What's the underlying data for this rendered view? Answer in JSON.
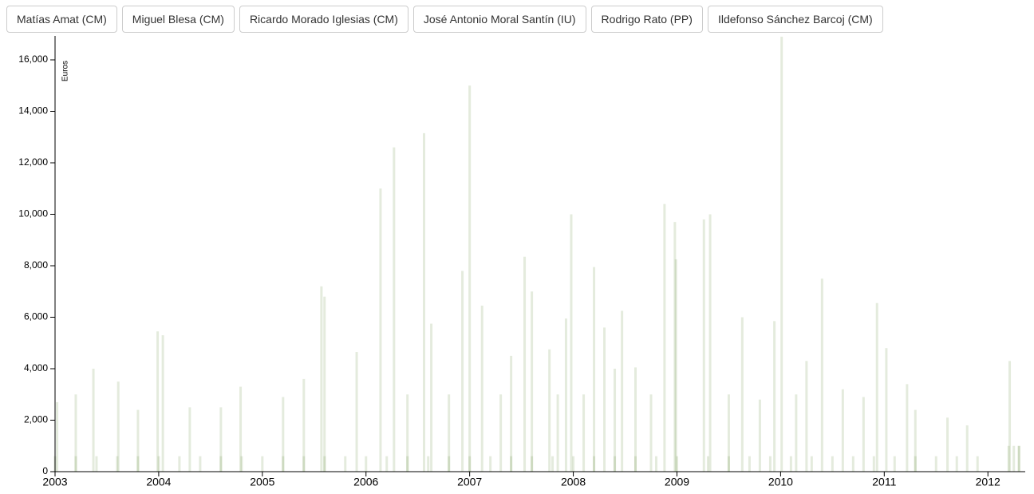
{
  "buttons": [
    "Matías Amat (CM)",
    "Miguel Blesa (CM)",
    "Ricardo Morado Iglesias (CM)",
    "José Antonio Moral Santín (IU)",
    "Rodrigo Rato (PP)",
    "Ildefonso Sánchez Barcoj (CM)"
  ],
  "chart_data": {
    "type": "bar",
    "ylabel": "Euros",
    "color": "#4a7a1a",
    "xlim": [
      2003,
      2012.36
    ],
    "xticks": [
      2003,
      2004,
      2005,
      2006,
      2007,
      2008,
      2009,
      2010,
      2011,
      2012
    ],
    "ylim": [
      0,
      16930
    ],
    "yticks": [
      0,
      {
        "value": 2000,
        "label": "2,000"
      },
      {
        "value": 4000,
        "label": "4,000"
      },
      {
        "value": 6000,
        "label": "6,000"
      },
      {
        "value": 8000,
        "label": "8,000"
      },
      {
        "value": 10000,
        "label": "10,000"
      },
      {
        "value": 12000,
        "label": "12,000"
      },
      {
        "value": 14000,
        "label": "14,000"
      },
      {
        "value": 16000,
        "label": "16,000"
      }
    ],
    "x": [
      2003.02,
      2003.37,
      2003.61,
      2003.99,
      2004.04,
      2004.79,
      2005.57,
      2005.6,
      2005.91,
      2006.14,
      2006.27,
      2006.56,
      2006.63,
      2006.93,
      2007.0,
      2007.12,
      2007.53,
      2007.6,
      2007.77,
      2007.93,
      2007.98,
      2008.2,
      2008.3,
      2008.47,
      2008.88,
      2008.98,
      2008.99,
      2009.26,
      2009.32,
      2009.63,
      2009.94,
      2010.01,
      2010.25,
      2010.4,
      2010.93,
      2011.02,
      2011.22,
      2012.21,
      2011.61,
      2003.2,
      2003.8,
      2004.3,
      2004.6,
      2005.2,
      2005.4,
      2006.4,
      2006.8,
      2007.3,
      2007.4,
      2007.85,
      2008.1,
      2008.4,
      2008.6,
      2008.75,
      2009.5,
      2009.8,
      2010.15,
      2010.6,
      2010.8,
      2011.3,
      2011.8,
      2012.25,
      2012.3,
      2003.0,
      2003.2,
      2003.4,
      2003.6,
      2003.8,
      2004.0,
      2004.2,
      2004.4,
      2004.6,
      2004.8,
      2005.0,
      2005.2,
      2005.4,
      2005.6,
      2005.8,
      2006.0,
      2006.2,
      2006.4,
      2006.6,
      2006.8,
      2007.0,
      2007.2,
      2007.4,
      2007.6,
      2007.8,
      2008.0,
      2008.2,
      2008.4,
      2008.6,
      2008.8,
      2009.0,
      2009.3,
      2009.5,
      2009.7,
      2009.9,
      2010.1,
      2010.3,
      2010.5,
      2010.7,
      2010.9,
      2011.1,
      2011.3,
      2011.5,
      2011.7,
      2011.9,
      2012.2,
      2012.3
    ],
    "values": [
      2700,
      4000,
      3500,
      5450,
      5300,
      3300,
      7200,
      6800,
      4650,
      11000,
      12600,
      13150,
      5750,
      7800,
      15000,
      6450,
      8350,
      7000,
      4750,
      5950,
      10000,
      7950,
      5600,
      6250,
      10400,
      9700,
      8250,
      9800,
      10000,
      6000,
      5850,
      16900,
      4300,
      7500,
      6550,
      4800,
      3400,
      4300,
      2100,
      3000,
      2400,
      2500,
      2500,
      2900,
      3600,
      3000,
      3000,
      3000,
      4500,
      3000,
      3000,
      4000,
      4050,
      3000,
      3000,
      2800,
      3000,
      3200,
      2900,
      2400,
      1800,
      1000,
      1000,
      600,
      600,
      600,
      600,
      600,
      600,
      600,
      600,
      600,
      600,
      600,
      600,
      600,
      600,
      600,
      600,
      600,
      600,
      600,
      600,
      600,
      600,
      600,
      600,
      600,
      600,
      600,
      600,
      600,
      600,
      600,
      600,
      600,
      600,
      600,
      600,
      600,
      600,
      600,
      600,
      600,
      600,
      600,
      600,
      600,
      1000,
      1000
    ]
  }
}
